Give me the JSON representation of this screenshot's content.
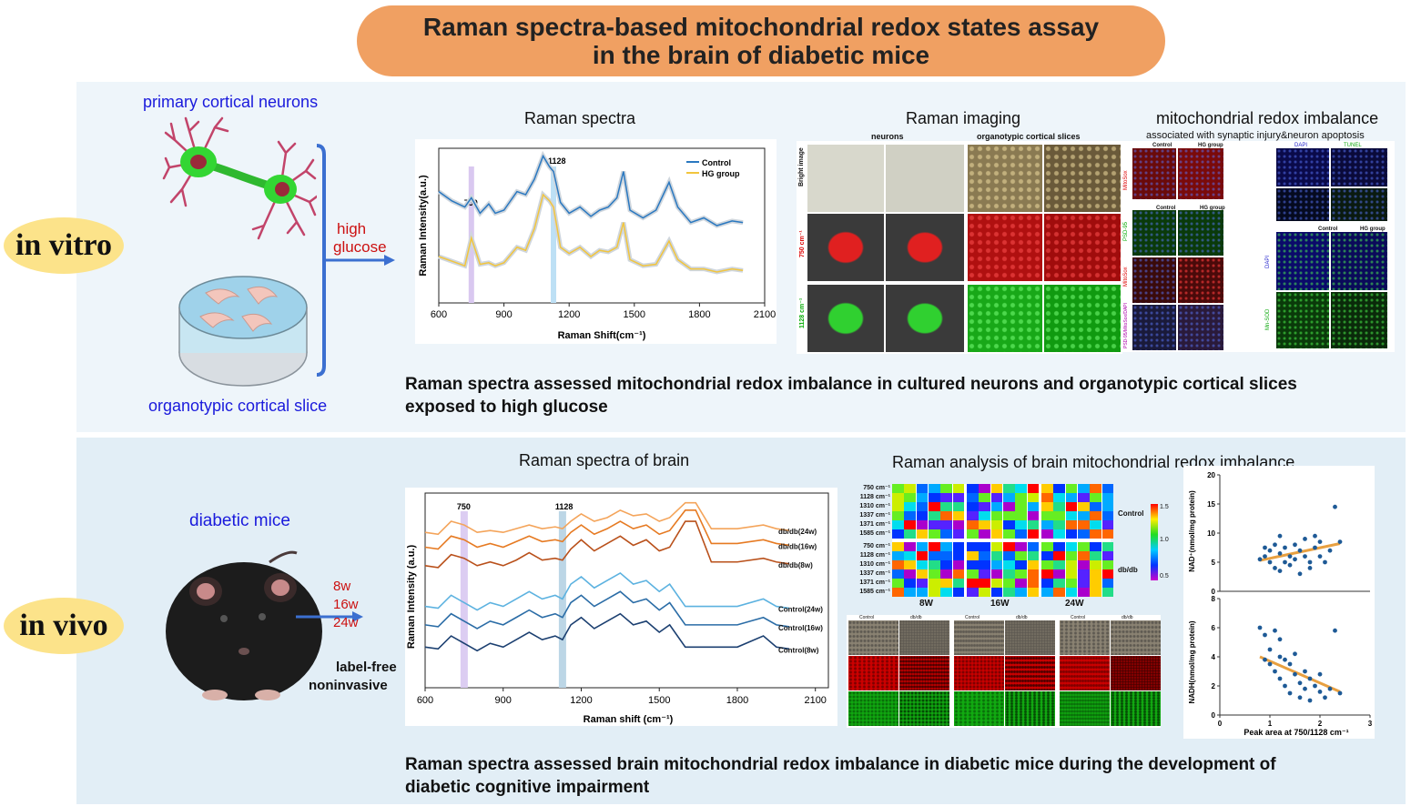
{
  "banner": {
    "line1": "Raman spectra-based mitochondrial redox states assay",
    "line2": "in the brain of diabetic mice"
  },
  "in_vitro": {
    "pill": "in vitro",
    "neurons_label": "primary cortical neurons",
    "slice_label": "organotypic cortical slice",
    "treatment_line1": "high",
    "treatment_line2": "glucose",
    "spectra_title": "Raman spectra",
    "imaging_title": "Raman imaging",
    "imaging_col_neurons": "neurons",
    "imaging_col_slices": "organotypic cortical slices",
    "imaging_row1": "Bright image",
    "imaging_row2": "750 cm⁻¹",
    "imaging_row3": "1128 cm⁻¹",
    "imbalance_title": "mitochondrial redox imbalance",
    "imbalance_subtitle": "associated with synaptic injury&neuron apoptosis",
    "fl_control": "Control",
    "fl_hg": "HG group",
    "fl_mitosox": "MitoSox",
    "fl_psd95": "PSD-95",
    "fl_merge": "PSD-95/MitoSox/DAPI",
    "fl_dapi": "DAPI",
    "fl_tunel": "TUNEL",
    "fl_mnsod": "Mn-SOD",
    "caption_line1": "Raman spectra assessed mitochondrial redox imbalance in cultured  neurons and organotypic cortical slices",
    "caption_line2": "exposed to high glucose"
  },
  "in_vivo": {
    "pill": "in vivo",
    "mice_label": "diabetic mice",
    "ages": [
      "8w",
      "16w",
      "24w"
    ],
    "method_line1": "label-free",
    "method_line2": "noninvasive",
    "spectra_title": "Raman spectra  of brain",
    "analysis_title": "Raman analysis of brain mitochondrial redox imbalance",
    "heatmap_rows": [
      "750 cm⁻¹",
      "1128 cm⁻¹",
      "1310 cm⁻¹",
      "1337 cm⁻¹",
      "1371 cm⁻¹",
      "1585 cm⁻¹"
    ],
    "heatmap_groups": [
      "Control",
      "db/db"
    ],
    "heatmap_cols": [
      "8W",
      "16W",
      "24W"
    ],
    "heatmap_scale": [
      "1.5",
      "1.0",
      "0.5"
    ],
    "image_sub_control": "Control",
    "image_sub_dbdb": "db/db",
    "caption_line1": "Raman spectra assessed brain mitochondrial redox imbalance in diabetic mice during the development of",
    "caption_line2": "diabetic cognitive impairment"
  },
  "colors": {
    "banner": "#f0a062",
    "pill": "#fce38a",
    "control": "#2a78c0",
    "hg_group": "#f2c53d",
    "neuron_body": "#33d633",
    "neuron_dendrite": "#c2446a",
    "fit_line": "#e8a040",
    "points": "#1e5a96"
  },
  "chart_data": [
    {
      "type": "line",
      "xlabel": "Raman Shift(cm⁻¹)",
      "ylabel": "Raman Intensity(a.u.)",
      "xlim": [
        600,
        2100
      ],
      "xticks": [
        600,
        900,
        1200,
        1500,
        1800,
        2100
      ],
      "highlights": [
        750,
        1128
      ],
      "legend": "top-right",
      "x": [
        600,
        660,
        720,
        750,
        790,
        830,
        860,
        900,
        960,
        1000,
        1040,
        1080,
        1110,
        1128,
        1160,
        1200,
        1250,
        1300,
        1340,
        1380,
        1420,
        1450,
        1480,
        1540,
        1600,
        1660,
        1700,
        1760,
        1820,
        1880,
        1950,
        2000
      ],
      "series": [
        {
          "name": "Control",
          "values": [
            0.72,
            0.66,
            0.62,
            0.68,
            0.58,
            0.64,
            0.58,
            0.6,
            0.72,
            0.7,
            0.8,
            0.95,
            0.88,
            0.85,
            0.65,
            0.58,
            0.62,
            0.56,
            0.6,
            0.62,
            0.68,
            0.85,
            0.6,
            0.55,
            0.6,
            0.78,
            0.62,
            0.52,
            0.55,
            0.5,
            0.53,
            0.52
          ]
        },
        {
          "name": "HG group",
          "values": [
            0.3,
            0.27,
            0.24,
            0.42,
            0.25,
            0.26,
            0.24,
            0.26,
            0.36,
            0.34,
            0.48,
            0.7,
            0.66,
            0.62,
            0.36,
            0.32,
            0.36,
            0.3,
            0.34,
            0.33,
            0.36,
            0.52,
            0.28,
            0.24,
            0.25,
            0.4,
            0.28,
            0.22,
            0.22,
            0.2,
            0.22,
            0.21
          ]
        }
      ],
      "peak_labels": [
        "750",
        "1128"
      ]
    },
    {
      "type": "line",
      "xlabel": "Raman shift (cm⁻¹)",
      "ylabel": "Raman Intensity (a.u.)",
      "xlim": [
        600,
        2150
      ],
      "xticks": [
        600,
        900,
        1200,
        1500,
        1800,
        2100
      ],
      "highlights": [
        750,
        1128
      ],
      "x": [
        600,
        650,
        700,
        750,
        800,
        850,
        900,
        950,
        1000,
        1050,
        1100,
        1128,
        1160,
        1200,
        1250,
        1300,
        1350,
        1400,
        1450,
        1500,
        1540,
        1600,
        1640,
        1700,
        1800,
        1900,
        1950,
        2000
      ],
      "series": [
        {
          "name": "db/db(24w)",
          "values": [
            0.84,
            0.83,
            0.9,
            0.88,
            0.84,
            0.85,
            0.84,
            0.86,
            0.88,
            0.86,
            0.87,
            0.86,
            0.9,
            0.94,
            0.9,
            0.92,
            0.96,
            0.93,
            0.94,
            0.9,
            0.92,
            1.0,
            1.0,
            0.86,
            0.86,
            0.88,
            0.86,
            0.85
          ]
        },
        {
          "name": "db/db(16w)",
          "values": [
            0.76,
            0.75,
            0.82,
            0.8,
            0.76,
            0.78,
            0.76,
            0.79,
            0.82,
            0.79,
            0.8,
            0.79,
            0.84,
            0.88,
            0.83,
            0.86,
            0.9,
            0.86,
            0.88,
            0.83,
            0.85,
            0.96,
            0.96,
            0.78,
            0.78,
            0.8,
            0.78,
            0.77
          ]
        },
        {
          "name": "db/db(8w)",
          "values": [
            0.66,
            0.65,
            0.72,
            0.7,
            0.66,
            0.68,
            0.66,
            0.69,
            0.73,
            0.69,
            0.7,
            0.69,
            0.75,
            0.8,
            0.74,
            0.78,
            0.82,
            0.77,
            0.8,
            0.74,
            0.76,
            0.9,
            0.9,
            0.68,
            0.68,
            0.7,
            0.68,
            0.67
          ]
        },
        {
          "name": "Control(24w)",
          "values": [
            0.44,
            0.43,
            0.5,
            0.46,
            0.42,
            0.46,
            0.44,
            0.48,
            0.52,
            0.48,
            0.5,
            0.48,
            0.56,
            0.6,
            0.54,
            0.58,
            0.62,
            0.56,
            0.58,
            0.52,
            0.56,
            0.44,
            0.44,
            0.44,
            0.44,
            0.48,
            0.44,
            0.43
          ]
        },
        {
          "name": "Control(16w)",
          "values": [
            0.34,
            0.33,
            0.4,
            0.36,
            0.32,
            0.36,
            0.34,
            0.38,
            0.42,
            0.38,
            0.4,
            0.38,
            0.46,
            0.5,
            0.44,
            0.48,
            0.52,
            0.46,
            0.48,
            0.42,
            0.46,
            0.34,
            0.34,
            0.34,
            0.34,
            0.38,
            0.34,
            0.33
          ]
        },
        {
          "name": "Control(8w)",
          "values": [
            0.22,
            0.21,
            0.28,
            0.24,
            0.2,
            0.24,
            0.22,
            0.26,
            0.3,
            0.26,
            0.28,
            0.26,
            0.34,
            0.38,
            0.32,
            0.36,
            0.4,
            0.34,
            0.36,
            0.3,
            0.34,
            0.22,
            0.22,
            0.22,
            0.22,
            0.28,
            0.22,
            0.21
          ]
        }
      ],
      "peak_labels": [
        "750",
        "1128"
      ]
    },
    {
      "type": "scatter",
      "ylabel": "NAD⁺(nmol/mg protein)",
      "xlim": [
        0,
        3
      ],
      "ylim": [
        0,
        20
      ],
      "yticks": [
        0,
        5,
        10,
        15,
        20
      ],
      "points": [
        [
          0.8,
          5.5
        ],
        [
          0.9,
          6
        ],
        [
          1.0,
          7
        ],
        [
          1.0,
          5
        ],
        [
          1.1,
          4
        ],
        [
          1.1,
          8
        ],
        [
          1.2,
          6.5
        ],
        [
          1.2,
          3.5
        ],
        [
          1.3,
          5
        ],
        [
          1.3,
          7.5
        ],
        [
          1.4,
          6
        ],
        [
          1.4,
          4.5
        ],
        [
          1.5,
          8
        ],
        [
          1.5,
          5.5
        ],
        [
          1.6,
          3
        ],
        [
          1.6,
          7
        ],
        [
          1.7,
          6
        ],
        [
          1.7,
          9
        ],
        [
          1.8,
          5
        ],
        [
          1.8,
          4
        ],
        [
          1.9,
          7.5
        ],
        [
          2.0,
          6
        ],
        [
          2.0,
          8.5
        ],
        [
          2.1,
          5
        ],
        [
          2.2,
          7
        ],
        [
          2.3,
          14.5
        ],
        [
          2.4,
          8.5
        ],
        [
          1.2,
          9.5
        ],
        [
          0.9,
          7.5
        ],
        [
          1.9,
          9.5
        ]
      ],
      "fit": [
        [
          0.8,
          5.3
        ],
        [
          2.4,
          8.2
        ]
      ]
    },
    {
      "type": "scatter",
      "xlabel": "Peak area at 750/1128 cm⁻¹",
      "ylabel": "NADH(nmol/mg protein)",
      "xlim": [
        0,
        3
      ],
      "ylim": [
        0,
        8
      ],
      "xticks": [
        0,
        1,
        2,
        3
      ],
      "yticks": [
        0,
        2,
        4,
        6,
        8
      ],
      "points": [
        [
          0.8,
          6
        ],
        [
          0.9,
          5.5
        ],
        [
          1.0,
          4.5
        ],
        [
          1.0,
          3.5
        ],
        [
          1.1,
          5.8
        ],
        [
          1.1,
          3
        ],
        [
          1.2,
          4
        ],
        [
          1.2,
          2.5
        ],
        [
          1.3,
          3.8
        ],
        [
          1.3,
          2
        ],
        [
          1.4,
          3.5
        ],
        [
          1.4,
          1.5
        ],
        [
          1.5,
          2.8
        ],
        [
          1.5,
          4.2
        ],
        [
          1.6,
          2.2
        ],
        [
          1.6,
          1.2
        ],
        [
          1.7,
          3
        ],
        [
          1.7,
          1.8
        ],
        [
          1.8,
          2.5
        ],
        [
          1.8,
          1
        ],
        [
          1.9,
          2
        ],
        [
          2.0,
          1.6
        ],
        [
          2.0,
          2.8
        ],
        [
          2.1,
          1.2
        ],
        [
          2.2,
          1.8
        ],
        [
          2.3,
          5.8
        ],
        [
          2.4,
          1.5
        ],
        [
          0.9,
          3.8
        ],
        [
          1.2,
          5.2
        ]
      ],
      "fit": [
        [
          0.8,
          4.0
        ],
        [
          2.4,
          1.6
        ]
      ]
    }
  ]
}
